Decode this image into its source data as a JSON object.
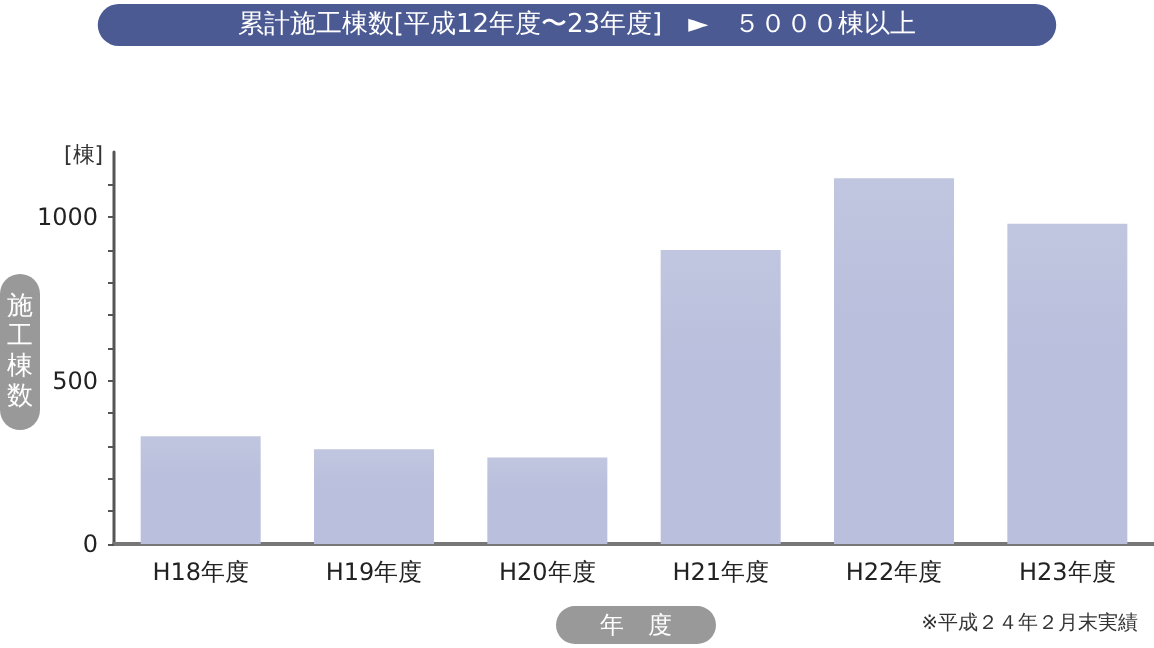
{
  "chart_data": {
    "type": "bar",
    "title": "累計施工棟数[平成12年度〜23年度]　►　５０００棟以上",
    "xlabel": "年　度",
    "ylabel": "施工棟数",
    "annotations": [
      "[棟]",
      "※平成２４年２月末実績"
    ],
    "categories": [
      "H18年度",
      "H19年度",
      "H20年度",
      "H21年度",
      "H22年度",
      "H23年度"
    ],
    "values": [
      330,
      290,
      265,
      900,
      1120,
      980
    ],
    "color": "#b9bfdc",
    "ylim": [
      0,
      1200
    ],
    "yticks": [
      0,
      {
        "value": 100,
        "label": null
      },
      {
        "value": 200,
        "label": null
      },
      {
        "value": 300,
        "label": null
      },
      {
        "value": 400,
        "label": null
      },
      500,
      {
        "value": 600,
        "label": null
      },
      {
        "value": 700,
        "label": null
      },
      {
        "value": 800,
        "label": null
      },
      {
        "value": 900,
        "label": null
      },
      1000,
      {
        "value": 1100,
        "label": null
      }
    ],
    "grid": false
  }
}
